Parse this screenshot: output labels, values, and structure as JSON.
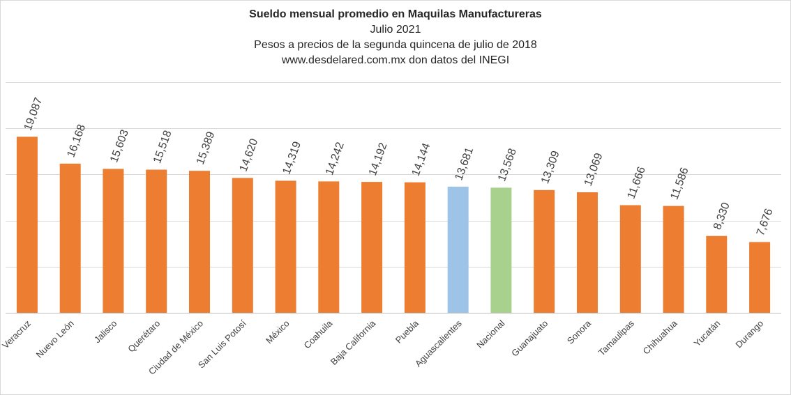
{
  "chart_data": {
    "type": "bar",
    "title": "Sueldo mensual promedio en Maquilas Manufactureras",
    "subtitles": [
      "Julio 2021",
      "Pesos a precios de la segunda quincena de julio de 2018",
      "www.desdelared.com.mx don datos del INEGI"
    ],
    "categories": [
      "Veracruz",
      "Nuevo León",
      "Jalisco",
      "Querétaro",
      "Ciudad de México",
      "San Luis Potosí",
      "México",
      "Coahuila",
      "Baja California",
      "Puebla",
      "Aguascalientes",
      "Nacional",
      "Guanajuato",
      "Sonora",
      "Tamaulipas",
      "Chihuahua",
      "Yucatán",
      "Durango"
    ],
    "values": [
      19087,
      16168,
      15603,
      15518,
      15389,
      14620,
      14319,
      14242,
      14192,
      14144,
      13681,
      13568,
      13309,
      13069,
      11666,
      11586,
      8330,
      7676
    ],
    "value_labels": [
      "19,087",
      "16,168",
      "15,603",
      "15,518",
      "15,389",
      "14,620",
      "14,319",
      "14,242",
      "14,192",
      "14,144",
      "13,681",
      "13,568",
      "13,309",
      "13,069",
      "11,666",
      "11,586",
      "8,330",
      "7,676"
    ],
    "colors": [
      "#ed7d31",
      "#ed7d31",
      "#ed7d31",
      "#ed7d31",
      "#ed7d31",
      "#ed7d31",
      "#ed7d31",
      "#ed7d31",
      "#ed7d31",
      "#ed7d31",
      "#9dc3e6",
      "#a9d18e",
      "#ed7d31",
      "#ed7d31",
      "#ed7d31",
      "#ed7d31",
      "#ed7d31",
      "#ed7d31"
    ],
    "ylim": [
      0,
      25000
    ],
    "gridlines": [
      5000,
      10000,
      15000,
      20000,
      25000
    ],
    "grid": true,
    "legend": false
  }
}
